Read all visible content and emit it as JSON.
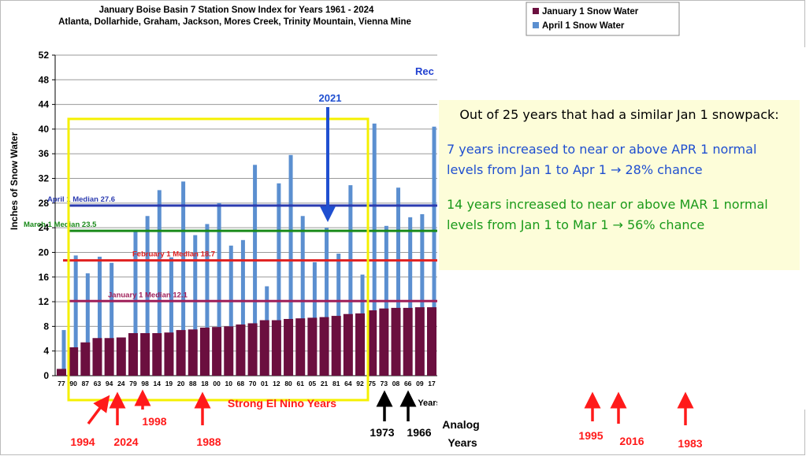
{
  "chart_data": {
    "type": "bar",
    "title": "January Boise Basin 7 Station Snow Index for Years 1961 - 2024",
    "subtitle": "Atlanta, Dollarhide, Graham, Jackson, Mores Creek, Trinity Mountain, Vienna Mine",
    "y_label": "Inches of Snow Water",
    "x_label": "Years",
    "categories": [
      "77",
      "90",
      "87",
      "63",
      "94",
      "24",
      "79",
      "98",
      "14",
      "19",
      "20",
      "88",
      "18",
      "00",
      "10",
      "68",
      "70",
      "01",
      "12",
      "80",
      "61",
      "05",
      "21",
      "81",
      "64",
      "92",
      "75",
      "73",
      "08",
      "66",
      "09",
      "17"
    ],
    "series": [
      {
        "name": "January 1 Snow Water",
        "color": "#6b0f3f",
        "values": [
          1.1,
          4.6,
          5.4,
          6.1,
          6.1,
          6.2,
          6.9,
          6.9,
          6.9,
          7.0,
          7.4,
          7.5,
          7.8,
          7.9,
          8.0,
          8.3,
          8.5,
          9.0,
          9.0,
          9.2,
          9.3,
          9.4,
          9.5,
          9.7,
          10.0,
          10.1,
          10.6,
          10.9,
          11.0,
          11.0,
          11.1,
          11.1
        ]
      },
      {
        "name": "April 1 Snow Water",
        "color": "#5b8fd0",
        "values": [
          7.4,
          19.5,
          16.6,
          19.3,
          18.3,
          null,
          23.4,
          25.9,
          30.1,
          19.2,
          31.5,
          22.8,
          24.6,
          28.0,
          21.1,
          22.0,
          34.2,
          14.5,
          31.2,
          35.8,
          25.9,
          18.4,
          24.0,
          19.8,
          30.9,
          16.4,
          40.9,
          24.3,
          30.5,
          25.7,
          26.2,
          40.4
        ]
      }
    ],
    "ylim": [
      0,
      52
    ],
    "yticks": [
      0,
      4,
      8,
      12,
      16,
      20,
      24,
      28,
      32,
      36,
      40,
      44,
      48,
      52
    ],
    "grid": true,
    "medians": [
      {
        "label": "April 1 Median 27.6",
        "value": 27.6,
        "color": "#2b3bb0"
      },
      {
        "label": "March 1 Median 23.5",
        "value": 23.5,
        "color": "#1a8a1a"
      },
      {
        "label": "February 1 Median 18.7",
        "value": 18.7,
        "color": "#e02020"
      },
      {
        "label": "January 1 Median 12.1",
        "value": 12.1,
        "color": "#a0205a"
      }
    ],
    "record_label": "Rec",
    "callout": {
      "heading": "Out of 25 years that had a similar Jan 1 snowpack:",
      "blue": "7 years increased to near or above APR 1 normal levels from Jan 1 to Apr 1 → 28% chance",
      "green": "14 years increased to near or above MAR 1 normal levels from Jan 1 to Mar 1 → 56% chance"
    },
    "annotations": {
      "y2021": "2021",
      "y1994": "1994",
      "y2024": "2024",
      "y1998": "1998",
      "y1988": "1988",
      "el_nino": "Strong El Nino Years",
      "y1973": "1973",
      "y1966": "1966",
      "analog": "Analog",
      "analog_years": "Years",
      "y1995": "1995",
      "y2016": "2016",
      "y1983": "1983"
    }
  }
}
